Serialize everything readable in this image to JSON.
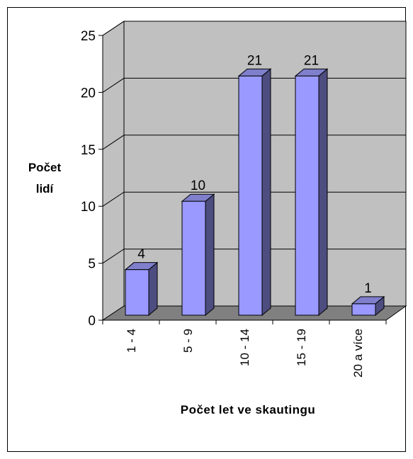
{
  "chart_data": {
    "type": "bar3d",
    "x_label": "Počet let ve skautingu",
    "y_label": "Počet lidí",
    "categories": [
      "1 - 4",
      "5 - 9",
      "10 - 14",
      "15 - 19",
      "20 a více"
    ],
    "values": [
      4,
      10,
      21,
      21,
      1
    ],
    "color": "#9999ff",
    "ylim": [
      0,
      25
    ],
    "yticks": [
      0,
      5,
      10,
      15,
      20,
      25
    ],
    "grid": true
  }
}
